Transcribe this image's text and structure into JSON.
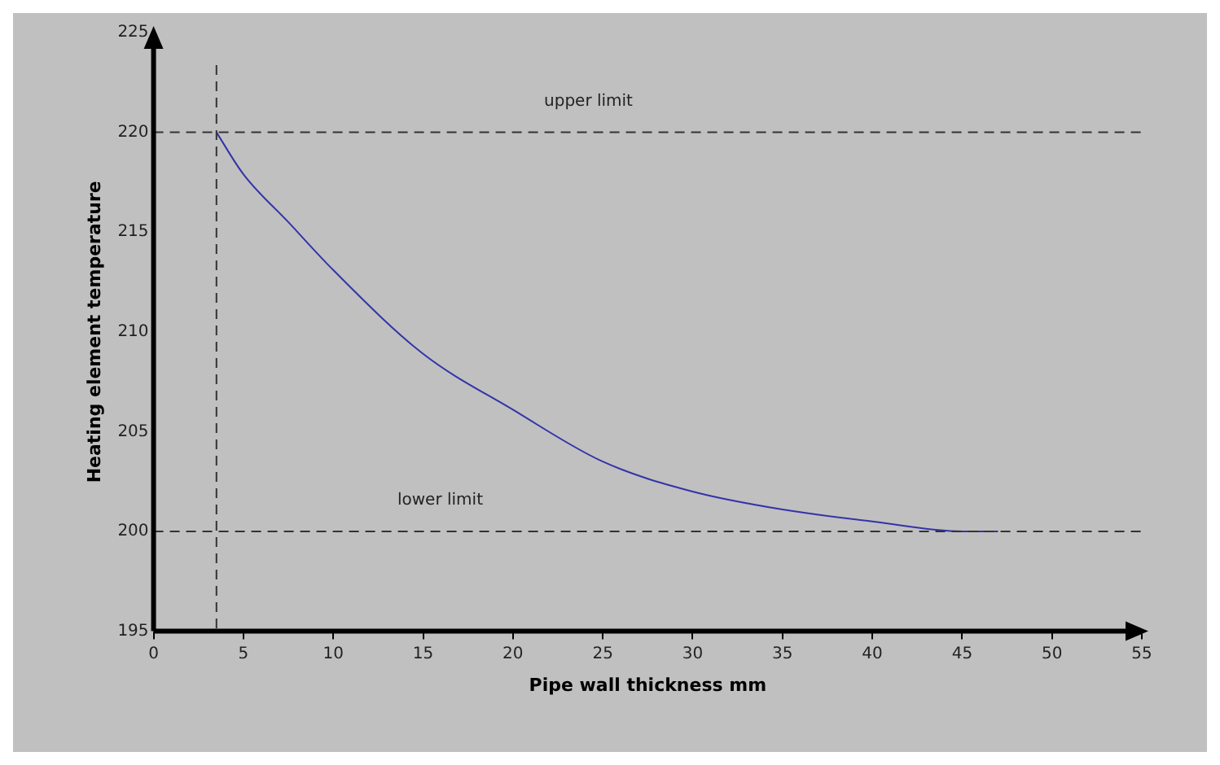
{
  "chart_data": {
    "type": "line",
    "xlabel": "Pipe wall thickness mm",
    "ylabel": "Heating element temperature",
    "x": [
      3.5,
      5,
      7.5,
      10,
      15,
      20,
      25,
      30,
      35,
      40,
      45,
      47
    ],
    "series": [
      {
        "color": "#3333aa",
        "values": [
          220,
          217.9,
          215.5,
          213.1,
          208.9,
          206.1,
          203.5,
          202.0,
          201.1,
          200.5,
          200,
          200
        ]
      }
    ],
    "xlim": [
      0,
      55
    ],
    "xticks": [
      0,
      5,
      10,
      15,
      20,
      25,
      30,
      35,
      40,
      45,
      50,
      55
    ],
    "ylim": [
      195,
      225
    ],
    "yticks": [
      195,
      200,
      205,
      210,
      215,
      220,
      225
    ],
    "ref_lines": [
      {
        "axis": "y",
        "value": 220,
        "label": "upper limit",
        "color": "#333333",
        "line_style": "dashed"
      },
      {
        "axis": "y",
        "value": 200,
        "label": "lower limit",
        "color": "#333333",
        "line_style": "dashed"
      },
      {
        "axis": "x",
        "value": 3.5,
        "color": "#333333",
        "line_style": "dashed"
      }
    ],
    "grid": false,
    "legend": false,
    "marker": "none",
    "line_style": "solid"
  }
}
